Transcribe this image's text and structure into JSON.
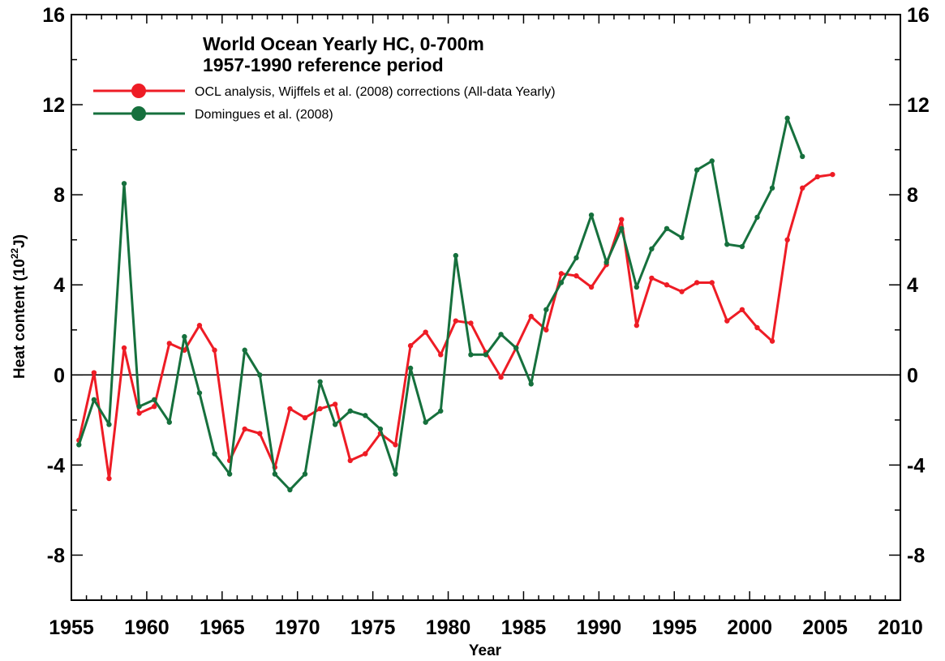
{
  "chart_data": {
    "type": "line",
    "title": "World Ocean Yearly  HC, 0-700m",
    "subtitle": "1957-1990 reference period",
    "xlabel": "Year",
    "ylabel_main": "Heat content (10",
    "ylabel_sup": "22",
    "ylabel_end": "J)",
    "xlim": [
      1955,
      2010
    ],
    "ylim": [
      -10,
      16
    ],
    "x_ticks": [
      1955,
      1960,
      1965,
      1970,
      1975,
      1980,
      1985,
      1990,
      1995,
      2000,
      2005,
      2010
    ],
    "y_ticks": [
      16,
      12,
      8,
      4,
      0,
      -4,
      -8
    ],
    "grid": false,
    "legend_position": "top-left",
    "series": [
      {
        "name": "OCL analysis, Wijffels et al. (2008) corrections (All-data Yearly)",
        "color": "#ee1c25",
        "x": [
          1955.5,
          1956.5,
          1957.5,
          1958.5,
          1959.5,
          1960.5,
          1961.5,
          1962.5,
          1963.5,
          1964.5,
          1965.5,
          1966.5,
          1967.5,
          1968.5,
          1969.5,
          1970.5,
          1971.5,
          1972.5,
          1973.5,
          1974.5,
          1975.5,
          1976.5,
          1977.5,
          1978.5,
          1979.5,
          1980.5,
          1981.5,
          1982.5,
          1983.5,
          1984.5,
          1985.5,
          1986.5,
          1987.5,
          1988.5,
          1989.5,
          1990.5,
          1991.5,
          1992.5,
          1993.5,
          1994.5,
          1995.5,
          1996.5,
          1997.5,
          1998.5,
          1999.5,
          2000.5,
          2001.5,
          2002.5,
          2003.5,
          2004.5,
          2005.5
        ],
        "y": [
          -2.9,
          0.1,
          -4.6,
          1.2,
          -1.7,
          -1.4,
          1.4,
          1.1,
          2.2,
          1.1,
          -3.8,
          -2.4,
          -2.6,
          -4.1,
          -1.5,
          -1.9,
          -1.5,
          -1.3,
          -3.8,
          -3.5,
          -2.6,
          -3.1,
          1.3,
          1.9,
          0.9,
          2.4,
          2.3,
          1.0,
          -0.1,
          1.2,
          2.6,
          2.0,
          4.5,
          4.4,
          3.9,
          4.9,
          6.9,
          2.2,
          4.3,
          4.0,
          3.7,
          4.1,
          4.1,
          2.4,
          2.9,
          2.1,
          1.5,
          6.0,
          8.3,
          8.8,
          8.9
        ]
      },
      {
        "name": "Domingues et al. (2008)",
        "color": "#16703d",
        "x": [
          1955.5,
          1956.5,
          1957.5,
          1958.5,
          1959.5,
          1960.5,
          1961.5,
          1962.5,
          1963.5,
          1964.5,
          1965.5,
          1966.5,
          1967.5,
          1968.5,
          1969.5,
          1970.5,
          1971.5,
          1972.5,
          1973.5,
          1974.5,
          1975.5,
          1976.5,
          1977.5,
          1978.5,
          1979.5,
          1980.5,
          1981.5,
          1982.5,
          1983.5,
          1984.5,
          1985.5,
          1986.5,
          1987.5,
          1988.5,
          1989.5,
          1990.5,
          1991.5,
          1992.5,
          1993.5,
          1994.5,
          1995.5,
          1996.5,
          1997.5,
          1998.5,
          1999.5,
          2000.5,
          2001.5,
          2002.5,
          2003.5
        ],
        "y": [
          -3.1,
          -1.1,
          -2.2,
          8.5,
          -1.4,
          -1.1,
          -2.1,
          1.7,
          -0.8,
          -3.5,
          -4.4,
          1.1,
          0.0,
          -4.4,
          -5.1,
          -4.4,
          -0.3,
          -2.2,
          -1.6,
          -1.8,
          -2.4,
          -4.4,
          0.3,
          -2.1,
          -1.6,
          5.3,
          0.9,
          0.9,
          1.8,
          1.2,
          -0.4,
          2.9,
          4.1,
          5.2,
          7.1,
          5.0,
          6.5,
          3.9,
          5.6,
          6.5,
          6.1,
          9.1,
          9.5,
          5.8,
          5.7,
          7.0,
          8.3,
          11.4,
          9.7
        ]
      }
    ]
  }
}
